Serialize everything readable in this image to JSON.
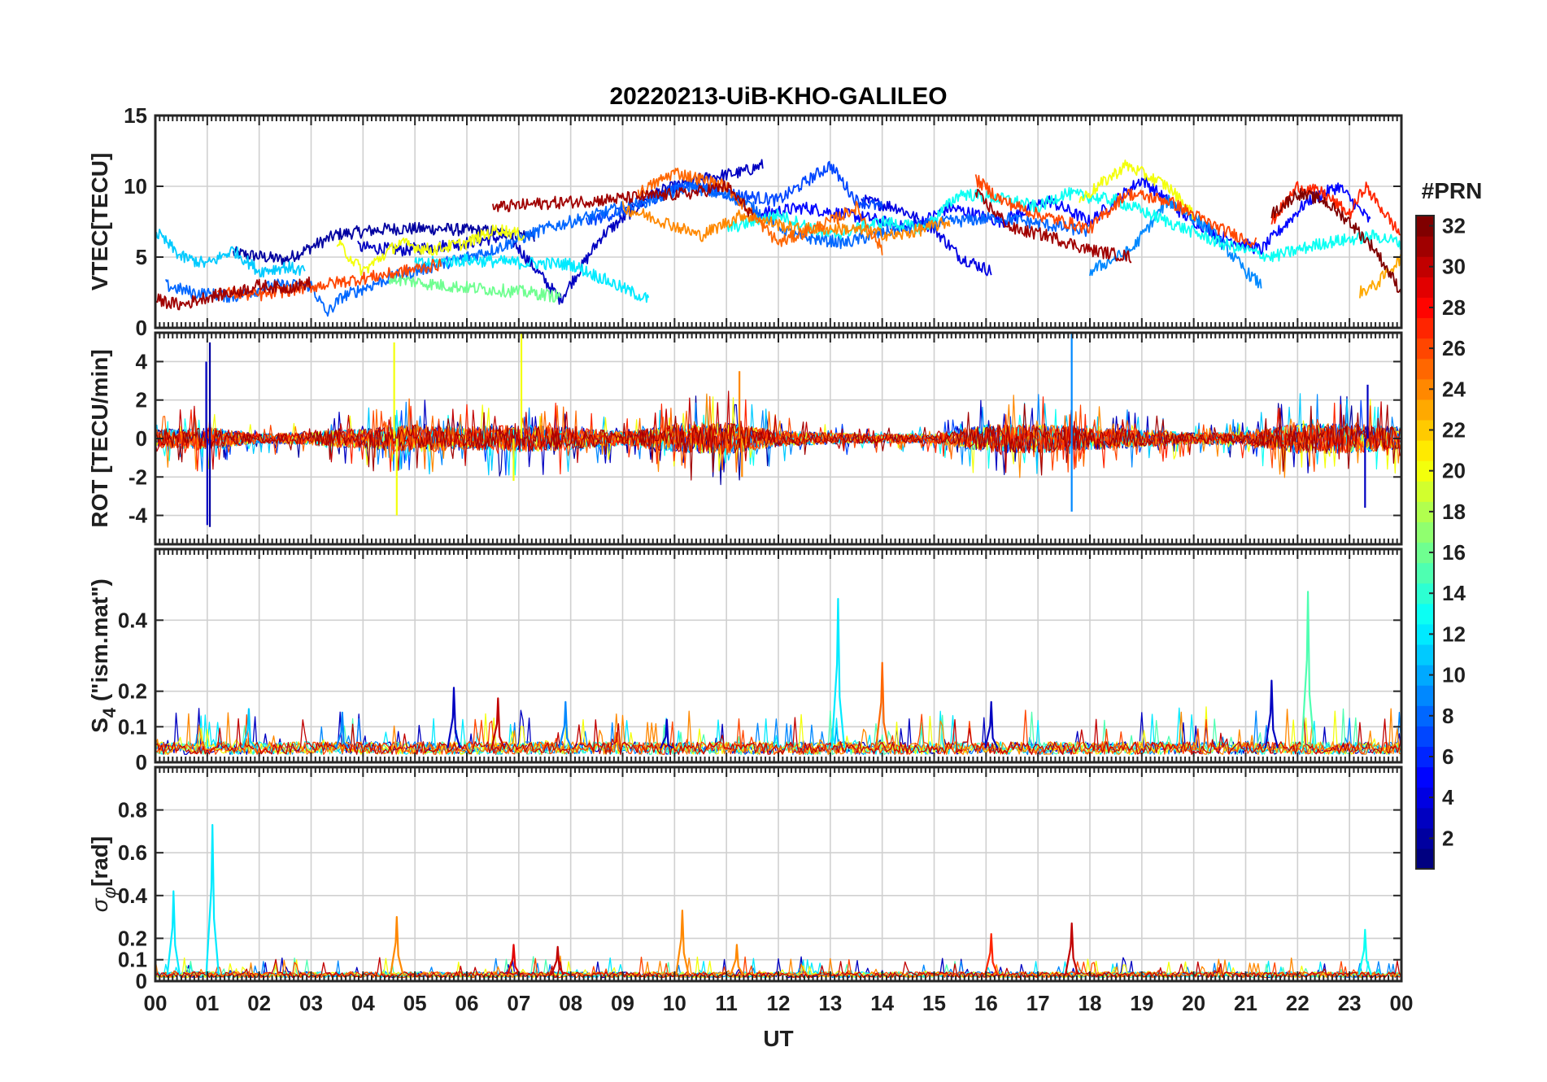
{
  "figure": {
    "title": "20220213-UiB-KHO-GALILEO",
    "xlabel": "UT",
    "colorbar_label": "#PRN"
  },
  "chart_data": {
    "type": "line",
    "title": "20220213-UiB-KHO-GALILEO",
    "xlabel": "UT",
    "x_tick_labels": [
      "00",
      "01",
      "02",
      "03",
      "04",
      "05",
      "06",
      "07",
      "08",
      "09",
      "10",
      "11",
      "12",
      "13",
      "14",
      "15",
      "16",
      "17",
      "18",
      "19",
      "20",
      "21",
      "22",
      "23",
      "00"
    ],
    "xlim_hours": [
      0,
      24
    ],
    "grid": true,
    "colormap": "jet",
    "colorbar": {
      "label": "#PRN",
      "range": [
        1,
        32
      ],
      "ticks": [
        2,
        4,
        6,
        8,
        10,
        12,
        14,
        16,
        18,
        20,
        22,
        24,
        26,
        28,
        30,
        32
      ],
      "levels": 32,
      "placement": "right"
    },
    "panels": [
      {
        "ylabel": "VTEC[TECU]",
        "ylim": [
          0,
          15
        ],
        "yticks": [
          0,
          5,
          10,
          15
        ],
        "series": [
          {
            "prn": 2,
            "x": [
              1.5,
              2.5,
              3.5,
              4.5,
              5.5,
              6.5,
              7.3
            ],
            "y": [
              5.3,
              4.8,
              6.6,
              7.0,
              7.0,
              6.8,
              6.5
            ]
          },
          {
            "prn": 3,
            "x": [
              3.9,
              4.8,
              5.8,
              6.8,
              7.8,
              8.6,
              9.6,
              10.5,
              11.3,
              11.7
            ],
            "y": [
              5.7,
              5.5,
              5.9,
              6.5,
              2.0,
              6.5,
              9.5,
              10.5,
              11.0,
              11.5
            ]
          },
          {
            "prn": 4,
            "x": [
              13.6,
              14.3,
              15.0,
              15.5,
              16.1
            ],
            "y": [
              9.0,
              8.5,
              7.0,
              5.0,
              4.0
            ]
          },
          {
            "prn": 5,
            "x": [
              11.5,
              12.5,
              13.3,
              13.8,
              14.5,
              15.3,
              16.3,
              17.2,
              18.0,
              19.0,
              19.8,
              20.5,
              21.3,
              22.2,
              22.8,
              23.4
            ],
            "y": [
              8.0,
              8.5,
              8.0,
              7.7,
              7.0,
              8.5,
              7.5,
              9.0,
              7.5,
              10.5,
              8.0,
              6.5,
              5.5,
              9.0,
              10.0,
              7.5
            ]
          },
          {
            "prn": 7,
            "x": [
              8.3,
              9.2,
              10.2,
              11.0,
              12.0,
              13.0,
              13.5,
              14.0
            ],
            "y": [
              7.5,
              8.5,
              10.2,
              9.5,
              9.0,
              11.5,
              9.0,
              8.5
            ]
          },
          {
            "prn": 8,
            "x": [
              0.2,
              0.7,
              1.5,
              2.3,
              3.0,
              3.3,
              3.6,
              4.5,
              5.5,
              6.5,
              7.5,
              8.5,
              9.5,
              10.3,
              11.3,
              12.3,
              13.3,
              14.3,
              15.3,
              16.3,
              17.3,
              18.0
            ],
            "y": [
              3.0,
              2.5,
              2.2,
              3.0,
              3.0,
              1.0,
              2.2,
              3.5,
              4.5,
              5.5,
              7.0,
              8.0,
              9.0,
              10.0,
              9.0,
              6.5,
              6.0,
              7.0,
              7.5,
              7.8,
              7.2,
              6.8
            ]
          },
          {
            "prn": 9,
            "x": [
              18.0,
              18.8,
              19.5,
              20.3,
              21.0,
              21.3
            ],
            "y": [
              4.0,
              5.5,
              9.0,
              7.0,
              4.0,
              3.0
            ]
          },
          {
            "prn": 11,
            "x": [
              0.0,
              0.5,
              1.0,
              1.5,
              2.0,
              2.5,
              2.9
            ],
            "y": [
              6.8,
              5.0,
              4.5,
              5.5,
              4.0,
              4.3,
              4.0
            ]
          },
          {
            "prn": 12,
            "x": [
              5.0,
              6.0,
              7.0,
              8.0,
              8.6,
              9.0,
              9.5
            ],
            "y": [
              4.5,
              4.8,
              4.6,
              4.5,
              3.5,
              2.8,
              2.0
            ]
          },
          {
            "prn": 13,
            "x": [
              11.0,
              12.0,
              13.0,
              14.0,
              14.8,
              15.5,
              16.5,
              17.0,
              17.5,
              18.5,
              19.5,
              20.5,
              21.5,
              22.5,
              23.5,
              24.0
            ],
            "y": [
              7.0,
              8.0,
              6.5,
              7.5,
              7.0,
              9.5,
              9.0,
              8.5,
              9.5,
              9.0,
              7.5,
              6.0,
              5.0,
              6.0,
              6.5,
              6.0
            ]
          },
          {
            "prn": 16,
            "x": [
              4.5,
              5.5,
              6.5,
              7.2,
              7.8
            ],
            "y": [
              3.5,
              3.0,
              2.7,
              2.5,
              2.2
            ]
          },
          {
            "prn": 20,
            "x": [
              3.5,
              4.0,
              4.7,
              5.3,
              6.0,
              6.6,
              7.1
            ],
            "y": [
              6.0,
              4.0,
              6.0,
              5.5,
              6.0,
              7.0,
              6.5
            ]
          },
          {
            "prn": 20,
            "x": [
              17.8,
              18.7,
              19.5,
              20.0
            ],
            "y": [
              9.0,
              11.5,
              10.0,
              8.0
            ]
          },
          {
            "prn": 23,
            "x": [
              23.2,
              23.5,
              24.0
            ],
            "y": [
              2.5,
              3.0,
              5.0
            ]
          },
          {
            "prn": 24,
            "x": [
              9.0,
              9.8,
              10.5,
              11.3,
              12.3,
              13.3,
              14.3,
              15.3
            ],
            "y": [
              8.5,
              7.5,
              6.5,
              8.0,
              7.0,
              7.0,
              6.5,
              7.5
            ]
          },
          {
            "prn": 25,
            "x": [
              9.3,
              10.0,
              11.0,
              12.0,
              13.0,
              13.5,
              14.0
            ],
            "y": [
              9.5,
              11.0,
              10.0,
              6.0,
              7.5,
              8.5,
              5.5
            ]
          },
          {
            "prn": 26,
            "x": [
              1.2,
              2.0,
              2.8,
              3.5,
              4.5,
              5.5
            ],
            "y": [
              2.5,
              2.3,
              2.8,
              3.2,
              3.8,
              4.5
            ]
          },
          {
            "prn": 26,
            "x": [
              15.8,
              16.3,
              17.0,
              18.0,
              18.7,
              19.5,
              20.5,
              21.2
            ],
            "y": [
              10.5,
              9.0,
              8.0,
              7.0,
              9.5,
              9.0,
              7.0,
              6.0
            ]
          },
          {
            "prn": 27,
            "x": [
              21.5,
              22.0,
              22.5,
              23.0,
              23.3,
              23.6,
              24.0
            ],
            "y": [
              7.5,
              10.0,
              9.5,
              8.0,
              10.0,
              8.5,
              6.5
            ]
          },
          {
            "prn": 31,
            "x": [
              0.0,
              0.5,
              1.0,
              1.5,
              2.0,
              2.5,
              3.0
            ],
            "y": [
              2.0,
              1.6,
              2.2,
              2.5,
              3.0,
              2.8,
              3.2
            ]
          },
          {
            "prn": 31,
            "x": [
              6.5,
              7.5,
              8.5,
              9.5,
              10.3,
              11.0,
              11.5
            ],
            "y": [
              8.5,
              8.8,
              9.0,
              9.3,
              9.5,
              10.0,
              8.0
            ]
          },
          {
            "prn": 31,
            "x": [
              15.8,
              16.5,
              17.2,
              18.0,
              18.8
            ],
            "y": [
              9.5,
              7.0,
              6.5,
              5.5,
              5.0
            ]
          },
          {
            "prn": 32,
            "x": [
              21.5,
              22.0,
              22.5,
              23.0,
              23.5,
              24.0
            ],
            "y": [
              8.0,
              9.5,
              9.0,
              7.5,
              5.5,
              2.5
            ]
          }
        ]
      },
      {
        "ylabel": "ROT [TECU/min]",
        "ylim": [
          -5.5,
          5.5
        ],
        "yticks": [
          -4,
          -2,
          0,
          2,
          4
        ],
        "noise_amplitude_envelope": {
          "x": [
            0,
            1,
            2,
            3,
            4,
            5,
            6,
            7,
            8,
            9,
            10,
            11,
            12,
            13,
            14,
            15,
            16,
            17,
            18,
            19,
            20,
            21,
            22,
            23,
            24
          ],
          "y": [
            0.8,
            1.0,
            0.4,
            0.6,
            0.9,
            1.2,
            1.0,
            1.2,
            1.0,
            0.6,
            1.2,
            1.4,
            0.7,
            0.5,
            0.4,
            0.4,
            1.2,
            1.3,
            1.0,
            0.8,
            0.5,
            0.6,
            1.3,
            1.3,
            1.0
          ]
        },
        "spikes": [
          {
            "prn": 2,
            "x": 1.05,
            "y": 5.0
          },
          {
            "prn": 2,
            "x": 1.05,
            "y": -4.6
          },
          {
            "prn": 3,
            "x": 0.98,
            "y": 4.0
          },
          {
            "prn": 3,
            "x": 1.0,
            "y": -4.5
          },
          {
            "prn": 20,
            "x": 4.6,
            "y": 5.0
          },
          {
            "prn": 20,
            "x": 4.65,
            "y": -4.0
          },
          {
            "prn": 20,
            "x": 7.05,
            "y": 5.5
          },
          {
            "prn": 20,
            "x": 6.9,
            "y": -2.2
          },
          {
            "prn": 24,
            "x": 11.25,
            "y": 3.5
          },
          {
            "prn": 24,
            "x": 11.3,
            "y": -2.0
          },
          {
            "prn": 9,
            "x": 17.65,
            "y": 5.5
          },
          {
            "prn": 9,
            "x": 17.65,
            "y": -3.8
          },
          {
            "prn": 3,
            "x": 23.35,
            "y": 2.8
          },
          {
            "prn": 3,
            "x": 23.3,
            "y": -3.6
          }
        ]
      },
      {
        "ylabel": "S_4 (\"ism.mat\")",
        "ylim": [
          0,
          0.6
        ],
        "yticks": [
          0,
          0.1,
          0.2,
          0.4
        ],
        "baseline": 0.04,
        "spikes": [
          {
            "prn": 11,
            "x": 1.8,
            "y": 0.15
          },
          {
            "prn": 9,
            "x": 3.6,
            "y": 0.14
          },
          {
            "prn": 3,
            "x": 5.75,
            "y": 0.21
          },
          {
            "prn": 30,
            "x": 6.6,
            "y": 0.18
          },
          {
            "prn": 9,
            "x": 7.9,
            "y": 0.17
          },
          {
            "prn": 3,
            "x": 9.85,
            "y": 0.12
          },
          {
            "prn": 12,
            "x": 13.15,
            "y": 0.46
          },
          {
            "prn": 25,
            "x": 14.0,
            "y": 0.28
          },
          {
            "prn": 3,
            "x": 16.1,
            "y": 0.17
          },
          {
            "prn": 3,
            "x": 21.5,
            "y": 0.23
          },
          {
            "prn": 15,
            "x": 22.2,
            "y": 0.48
          }
        ]
      },
      {
        "ylabel": "σ_φ[rad]",
        "ylim": [
          0,
          1.0
        ],
        "yticks": [
          0,
          0.1,
          0.2,
          0.4,
          0.6,
          0.8
        ],
        "baseline": 0.03,
        "spikes": [
          {
            "prn": 12,
            "x": 0.35,
            "y": 0.42
          },
          {
            "prn": 12,
            "x": 1.1,
            "y": 0.73
          },
          {
            "prn": 24,
            "x": 4.65,
            "y": 0.3
          },
          {
            "prn": 29,
            "x": 6.9,
            "y": 0.17
          },
          {
            "prn": 30,
            "x": 7.75,
            "y": 0.16
          },
          {
            "prn": 24,
            "x": 10.15,
            "y": 0.33
          },
          {
            "prn": 24,
            "x": 11.2,
            "y": 0.17
          },
          {
            "prn": 27,
            "x": 16.1,
            "y": 0.22
          },
          {
            "prn": 30,
            "x": 17.65,
            "y": 0.27
          },
          {
            "prn": 13,
            "x": 23.3,
            "y": 0.24
          }
        ]
      }
    ]
  }
}
